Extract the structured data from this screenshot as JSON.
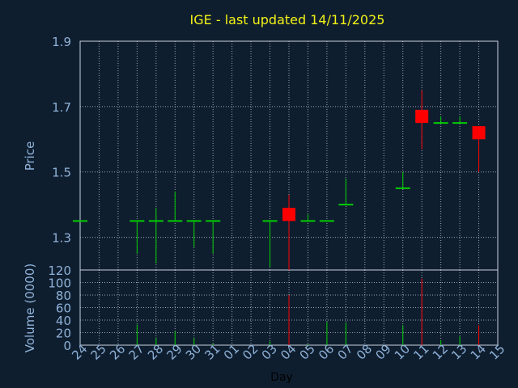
{
  "chart_data": {
    "type": "candlestick",
    "title": "IGE - last updated 14/11/2025",
    "xlabel": "Day",
    "colors": {
      "background": "#0f1e2f",
      "up": "#00cc00",
      "down": "#ff0000",
      "title": "#f2f216",
      "tick": "#8fb3d9",
      "grid": "#c8d2dc"
    },
    "x_tick_labels": [
      "24",
      "25",
      "26",
      "27",
      "28",
      "29",
      "30",
      "31",
      "01",
      "02",
      "03",
      "04",
      "05",
      "06",
      "07",
      "08",
      "09",
      "10",
      "11",
      "12",
      "13",
      "14",
      "15"
    ],
    "price_panel": {
      "ylabel": "Price",
      "ylim": [
        1.2,
        1.9
      ],
      "yticks": [
        1.3,
        1.5,
        1.7,
        1.9
      ],
      "ytick_labels": [
        "1.3",
        "1.5",
        "1.7",
        "1.9"
      ],
      "grid": true
    },
    "volume_panel": {
      "ylabel": "Volume (0000)",
      "ylim": [
        0,
        120
      ],
      "yticks": [
        0,
        20,
        40,
        60,
        80,
        100,
        120
      ],
      "ytick_labels": [
        "0",
        "20",
        "40",
        "60",
        "80",
        "100",
        "120"
      ],
      "grid": true
    },
    "candles": [
      {
        "day": "24",
        "open": 1.35,
        "high": 1.35,
        "low": 1.35,
        "close": 1.35,
        "volume": 0
      },
      {
        "day": "27",
        "open": 1.35,
        "high": 1.35,
        "low": 1.25,
        "close": 1.35,
        "volume": 33
      },
      {
        "day": "28",
        "open": 1.35,
        "high": 1.39,
        "low": 1.22,
        "close": 1.35,
        "volume": 12
      },
      {
        "day": "29",
        "open": 1.35,
        "high": 1.44,
        "low": 1.35,
        "close": 1.35,
        "volume": 22
      },
      {
        "day": "30",
        "open": 1.35,
        "high": 1.35,
        "low": 1.27,
        "close": 1.35,
        "volume": 12
      },
      {
        "day": "31",
        "open": 1.35,
        "high": 1.35,
        "low": 1.25,
        "close": 1.35,
        "volume": 3
      },
      {
        "day": "03",
        "open": 1.35,
        "high": 1.35,
        "low": 1.21,
        "close": 1.35,
        "volume": 6
      },
      {
        "day": "04",
        "open": 1.39,
        "high": 1.43,
        "low": 1.2,
        "close": 1.35,
        "volume": 80
      },
      {
        "day": "05",
        "open": 1.35,
        "high": 1.37,
        "low": 1.35,
        "close": 1.35,
        "volume": 2
      },
      {
        "day": "06",
        "open": 1.35,
        "high": 1.35,
        "low": 1.35,
        "close": 1.35,
        "volume": 37
      },
      {
        "day": "07",
        "open": 1.4,
        "high": 1.48,
        "low": 1.4,
        "close": 1.4,
        "volume": 36
      },
      {
        "day": "10",
        "open": 1.45,
        "high": 1.5,
        "low": 1.45,
        "close": 1.45,
        "volume": 32
      },
      {
        "day": "11",
        "open": 1.69,
        "high": 1.75,
        "low": 1.57,
        "close": 1.65,
        "volume": 106
      },
      {
        "day": "12",
        "open": 1.65,
        "high": 1.67,
        "low": 1.65,
        "close": 1.65,
        "volume": 8
      },
      {
        "day": "13",
        "open": 1.65,
        "high": 1.67,
        "low": 1.65,
        "close": 1.65,
        "volume": 14
      },
      {
        "day": "14",
        "open": 1.64,
        "high": 1.64,
        "low": 1.5,
        "close": 1.6,
        "volume": 32
      }
    ]
  }
}
